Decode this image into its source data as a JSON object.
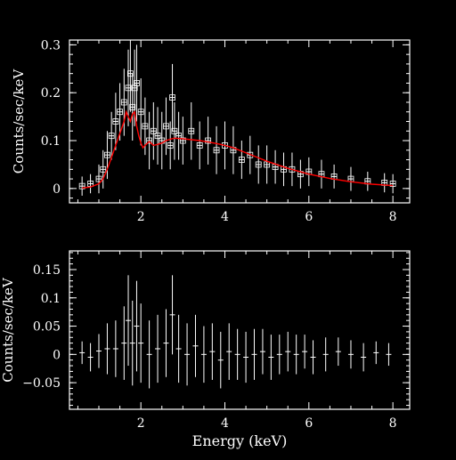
{
  "chart_data": [
    {
      "type": "scatter",
      "ylabel": "Counts/sec/keV",
      "xlim": [
        0.3,
        8.4
      ],
      "ylim": [
        -0.03,
        0.31
      ],
      "xticks": [
        2,
        4,
        6,
        8
      ],
      "yticks": [
        0,
        0.1,
        0.2,
        0.3
      ],
      "ytick_labels": [
        "0",
        "0.1",
        "0.2",
        "0.3"
      ],
      "series": [
        {
          "kind": "data-with-errorbars",
          "color": "#ffffff",
          "marker": "open-square",
          "x": [
            0.6,
            0.8,
            1.0,
            1.1,
            1.2,
            1.3,
            1.4,
            1.5,
            1.6,
            1.7,
            1.75,
            1.8,
            1.85,
            1.9,
            2.0,
            2.1,
            2.2,
            2.3,
            2.4,
            2.5,
            2.6,
            2.7,
            2.75,
            2.8,
            2.9,
            3.0,
            3.2,
            3.4,
            3.6,
            3.8,
            4.0,
            4.2,
            4.4,
            4.6,
            4.8,
            5.0,
            5.2,
            5.4,
            5.6,
            5.8,
            6.0,
            6.3,
            6.6,
            7.0,
            7.4,
            7.8,
            8.0
          ],
          "y": [
            0.005,
            0.01,
            0.02,
            0.04,
            0.07,
            0.11,
            0.14,
            0.16,
            0.18,
            0.21,
            0.24,
            0.17,
            0.21,
            0.22,
            0.16,
            0.13,
            0.1,
            0.12,
            0.11,
            0.1,
            0.13,
            0.09,
            0.19,
            0.12,
            0.11,
            0.1,
            0.12,
            0.09,
            0.1,
            0.08,
            0.09,
            0.08,
            0.06,
            0.07,
            0.05,
            0.05,
            0.045,
            0.04,
            0.04,
            0.03,
            0.035,
            0.03,
            0.025,
            0.02,
            0.015,
            0.012,
            0.01
          ],
          "yerr": [
            0.02,
            0.02,
            0.03,
            0.04,
            0.05,
            0.05,
            0.06,
            0.06,
            0.07,
            0.08,
            0.08,
            0.07,
            0.08,
            0.08,
            0.07,
            0.06,
            0.06,
            0.06,
            0.06,
            0.06,
            0.06,
            0.05,
            0.07,
            0.06,
            0.05,
            0.05,
            0.06,
            0.05,
            0.05,
            0.05,
            0.05,
            0.05,
            0.04,
            0.04,
            0.04,
            0.04,
            0.035,
            0.035,
            0.035,
            0.03,
            0.03,
            0.03,
            0.025,
            0.025,
            0.02,
            0.02,
            0.02
          ]
        },
        {
          "kind": "model",
          "color": "#ff0000",
          "x": [
            0.6,
            0.8,
            1.0,
            1.1,
            1.2,
            1.3,
            1.4,
            1.5,
            1.6,
            1.65,
            1.7,
            1.75,
            1.8,
            1.85,
            1.9,
            1.95,
            2.0,
            2.05,
            2.1,
            2.2,
            2.3,
            2.4,
            2.5,
            2.6,
            2.7,
            2.8,
            3.0,
            3.2,
            3.4,
            3.6,
            3.8,
            4.0,
            4.2,
            4.4,
            4.6,
            4.8,
            5.0,
            5.5,
            6.0,
            6.5,
            7.0,
            7.5,
            8.0
          ],
          "y": [
            0.001,
            0.003,
            0.01,
            0.02,
            0.04,
            0.065,
            0.09,
            0.115,
            0.14,
            0.16,
            0.15,
            0.14,
            0.155,
            0.16,
            0.13,
            0.11,
            0.095,
            0.085,
            0.09,
            0.098,
            0.09,
            0.092,
            0.095,
            0.1,
            0.103,
            0.105,
            0.104,
            0.102,
            0.1,
            0.097,
            0.094,
            0.09,
            0.085,
            0.078,
            0.071,
            0.064,
            0.057,
            0.042,
            0.03,
            0.021,
            0.014,
            0.009,
            0.006
          ]
        }
      ]
    },
    {
      "type": "scatter",
      "xlabel": "Energy (keV)",
      "ylabel": "Counts/sec/keV",
      "xlim": [
        0.3,
        8.4
      ],
      "ylim": [
        -0.097,
        0.183
      ],
      "xticks": [
        2,
        4,
        6,
        8
      ],
      "yticks": [
        -0.05,
        0,
        0.05,
        0.1,
        0.15
      ],
      "ytick_labels": [
        "−0.05",
        "0",
        "0.05",
        "0.1",
        "0.15"
      ],
      "series": [
        {
          "kind": "residual-errorbars",
          "color": "#ffffff",
          "x": [
            0.6,
            0.8,
            1.0,
            1.2,
            1.4,
            1.6,
            1.7,
            1.8,
            1.9,
            2.0,
            2.2,
            2.4,
            2.6,
            2.75,
            2.9,
            3.1,
            3.3,
            3.5,
            3.7,
            3.9,
            4.1,
            4.3,
            4.5,
            4.7,
            4.9,
            5.1,
            5.3,
            5.5,
            5.7,
            5.9,
            6.1,
            6.4,
            6.7,
            7.0,
            7.3,
            7.6,
            7.9
          ],
          "y": [
            0.003,
            -0.005,
            0.006,
            0.01,
            0.01,
            0.02,
            0.06,
            0.02,
            0.05,
            0.02,
            0.0,
            0.01,
            0.02,
            0.07,
            0.01,
            0.0,
            0.015,
            0.0,
            0.005,
            -0.01,
            0.005,
            0.0,
            -0.005,
            0.0,
            0.005,
            -0.005,
            0.0,
            0.005,
            0.0,
            0.005,
            -0.005,
            0.0,
            0.005,
            0.0,
            -0.005,
            0.003,
            0.0
          ],
          "yerr": [
            0.02,
            0.025,
            0.03,
            0.045,
            0.05,
            0.065,
            0.08,
            0.075,
            0.08,
            0.07,
            0.06,
            0.06,
            0.06,
            0.07,
            0.06,
            0.055,
            0.055,
            0.05,
            0.05,
            0.05,
            0.05,
            0.045,
            0.045,
            0.045,
            0.04,
            0.04,
            0.035,
            0.035,
            0.035,
            0.03,
            0.03,
            0.03,
            0.025,
            0.025,
            0.025,
            0.02,
            0.02
          ]
        }
      ]
    }
  ]
}
